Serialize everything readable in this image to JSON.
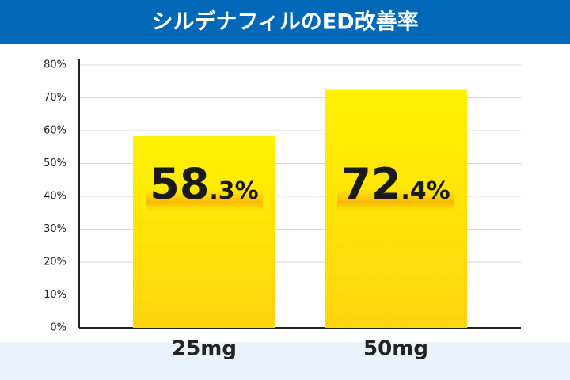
{
  "chart_data": {
    "type": "bar",
    "title": "シルデナフィルのED改善率",
    "categories": [
      "25mg",
      "50mg"
    ],
    "values": [
      58.3,
      72.4
    ],
    "value_labels": [
      "58.3%",
      "72.4%"
    ],
    "color": "#ffe600",
    "ylim": [
      0,
      80
    ],
    "yticks": [
      {
        "value": 0,
        "label": "0%"
      },
      {
        "value": 10,
        "label": "10%"
      },
      {
        "value": 20,
        "label": "20%"
      },
      {
        "value": 30,
        "label": "30%"
      },
      {
        "value": 40,
        "label": "40%"
      },
      {
        "value": 50,
        "label": "50%"
      },
      {
        "value": 60,
        "label": "60%"
      },
      {
        "value": 70,
        "label": "70%"
      },
      {
        "value": 80,
        "label": "80%"
      }
    ],
    "grid": true
  }
}
